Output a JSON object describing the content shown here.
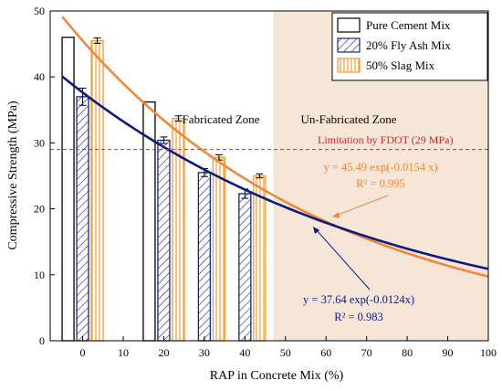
{
  "chart_data": {
    "type": "bar",
    "xlabel": "RAP in Concrete Mix (%)",
    "ylabel": "Compressive Strength (MPa)",
    "xlim": [
      -8,
      100
    ],
    "ylim": [
      0,
      50
    ],
    "x_ticks": [
      0,
      10,
      20,
      30,
      40,
      50,
      60,
      70,
      80,
      90,
      100
    ],
    "y_ticks": [
      0,
      10,
      20,
      30,
      40,
      50
    ],
    "grid": false,
    "legend_position": "top-right",
    "series": [
      {
        "name": "Pure Cement Mix",
        "x": [
          0,
          20
        ],
        "values": [
          46.0,
          36.2
        ],
        "errors": [
          0,
          0
        ],
        "color": "#000000",
        "fill": "none"
      },
      {
        "name": "20% Fly Ash Mix",
        "x": [
          0,
          20,
          30,
          40
        ],
        "values": [
          37.0,
          30.4,
          25.5,
          22.3
        ],
        "errors": [
          1.3,
          0.5,
          0.6,
          0.7
        ],
        "color": "#1a237e",
        "fill": "diagonal-hatch"
      },
      {
        "name": "50% Slag Mix",
        "x": [
          0,
          20,
          30,
          40
        ],
        "values": [
          45.5,
          33.7,
          27.8,
          25.0
        ],
        "errors": [
          0.4,
          0.4,
          0.4,
          0.3
        ],
        "color": "#f39c34",
        "fill": "vertical-stripes"
      }
    ],
    "trendlines": [
      {
        "series": "50% Slag Mix",
        "a": 45.49,
        "k": -0.0154,
        "color": "#f0883a",
        "equation": "y = 45.49 exp(-0.0154 x)",
        "r2": "R² = 0.995"
      },
      {
        "series": "20% Fly Ash Mix",
        "a": 37.64,
        "k": -0.0124,
        "color": "#0d1a80",
        "equation": "y = 37.64 exp(-0.0124x)",
        "r2": "R² = 0.983"
      }
    ],
    "reference_line": {
      "y": 29,
      "label": "Limitation by FDOT (29 MPa)",
      "color": "#d62728"
    },
    "zones": [
      {
        "label": "Fabricated Zone",
        "from": -8,
        "to": 47,
        "color": "#ffffff"
      },
      {
        "label": "Un-Fabricated Zone",
        "from": 47,
        "to": 100,
        "color": "#f5e6d8"
      }
    ]
  }
}
